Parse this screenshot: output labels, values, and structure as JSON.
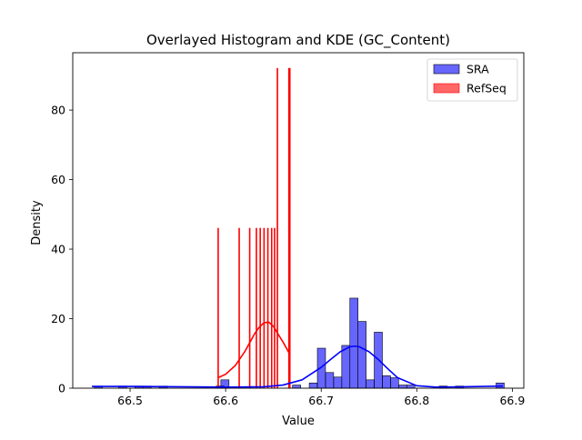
{
  "chart_data": {
    "type": "histogram",
    "title": "Overlayed Histogram and KDE (GC_Content)",
    "xlabel": "Value",
    "ylabel": "Density",
    "xlim": [
      66.44,
      66.912
    ],
    "ylim": [
      0,
      96.5
    ],
    "xticks": [
      {
        "value": 66.5,
        "label": "66.5"
      },
      {
        "value": 66.6,
        "label": "66.6"
      },
      {
        "value": 66.7,
        "label": "66.7"
      },
      {
        "value": 66.8,
        "label": "66.8"
      },
      {
        "value": 66.9,
        "label": "66.9"
      }
    ],
    "yticks": [
      {
        "value": 0,
        "label": "0"
      },
      {
        "value": 20,
        "label": "20"
      },
      {
        "value": 40,
        "label": "40"
      },
      {
        "value": 60,
        "label": "60"
      },
      {
        "value": 80,
        "label": "80"
      }
    ],
    "legend": {
      "position": "top-right"
    },
    "series": [
      {
        "name": "SRA",
        "color": "#0000ff",
        "bin_width": 0.0085,
        "bins": [
          {
            "x0": 66.4625,
            "h": 0.6
          },
          {
            "x0": 66.488,
            "h": 0.6
          },
          {
            "x0": 66.505,
            "h": 0.6
          },
          {
            "x0": 66.5135,
            "h": 0.6
          },
          {
            "x0": 66.5305,
            "h": 0.6
          },
          {
            "x0": 66.59,
            "h": 0.6
          },
          {
            "x0": 66.595,
            "h": 2.4
          },
          {
            "x0": 66.67,
            "h": 0.9
          },
          {
            "x0": 66.6875,
            "h": 1.5
          },
          {
            "x0": 66.696,
            "h": 11.5
          },
          {
            "x0": 66.7045,
            "h": 4.5
          },
          {
            "x0": 66.713,
            "h": 3.2
          },
          {
            "x0": 66.7215,
            "h": 12.3
          },
          {
            "x0": 66.73,
            "h": 25.9
          },
          {
            "x0": 66.7385,
            "h": 19.2
          },
          {
            "x0": 66.747,
            "h": 2.4
          },
          {
            "x0": 66.7555,
            "h": 16.1
          },
          {
            "x0": 66.764,
            "h": 3.6
          },
          {
            "x0": 66.7725,
            "h": 3.0
          },
          {
            "x0": 66.781,
            "h": 0.9
          },
          {
            "x0": 66.7895,
            "h": 0.9
          },
          {
            "x0": 66.8235,
            "h": 0.6
          },
          {
            "x0": 66.8405,
            "h": 0.6
          },
          {
            "x0": 66.883,
            "h": 1.5
          }
        ],
        "kde": {
          "x": [
            66.46,
            66.5,
            66.55,
            66.6,
            66.64,
            66.66,
            66.68,
            66.7,
            66.71,
            66.72,
            66.73,
            66.735,
            66.74,
            66.75,
            66.76,
            66.77,
            66.78,
            66.8,
            66.82,
            66.85,
            66.89
          ],
          "y": [
            0.5,
            0.5,
            0.4,
            0.3,
            0.4,
            0.9,
            2.4,
            6.0,
            8.3,
            10.5,
            11.9,
            12.1,
            11.9,
            10.5,
            8.2,
            5.5,
            3.0,
            0.7,
            0.3,
            0.4,
            0.6
          ]
        }
      },
      {
        "name": "RefSeq",
        "color": "#ff0000",
        "bin_width": 0.0004,
        "bins": [
          {
            "x0": 66.5918,
            "h": 46
          },
          {
            "x0": 66.6138,
            "h": 46
          },
          {
            "x0": 66.6248,
            "h": 46
          },
          {
            "x0": 66.6318,
            "h": 46
          },
          {
            "x0": 66.6358,
            "h": 46
          },
          {
            "x0": 66.6398,
            "h": 46
          },
          {
            "x0": 66.6438,
            "h": 46
          },
          {
            "x0": 66.6478,
            "h": 46
          },
          {
            "x0": 66.6508,
            "h": 46
          },
          {
            "x0": 66.6538,
            "h": 92
          },
          {
            "x0": 66.6658,
            "h": 92
          },
          {
            "x0": 66.6668,
            "h": 92
          }
        ],
        "kde": {
          "x": [
            66.592,
            66.6,
            66.61,
            66.62,
            66.63,
            66.635,
            66.64,
            66.645,
            66.65,
            66.655,
            66.66,
            66.667
          ],
          "y": [
            3.0,
            4.0,
            6.5,
            10.5,
            15.5,
            17.5,
            18.8,
            19.0,
            17.8,
            15.5,
            13.3,
            9.8
          ]
        }
      }
    ]
  }
}
